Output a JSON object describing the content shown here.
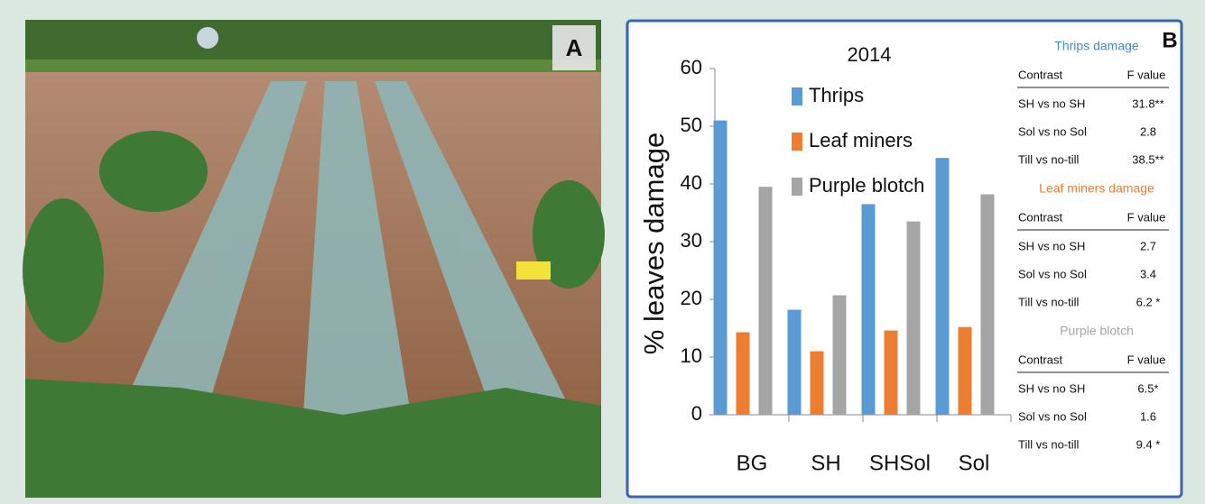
{
  "panels": [
    "A",
    "B"
  ],
  "chart_data": {
    "type": "bar",
    "title": "2014",
    "y_label": "% leaves damage",
    "categories": [
      "BG",
      "SH",
      "SHSol",
      "Sol"
    ],
    "series": [
      {
        "name": "Thrips",
        "color": "#5b9bd5",
        "values": [
          51,
          18.2,
          36.5,
          44.5
        ]
      },
      {
        "name": "Leaf miners",
        "color": "#ed7d31",
        "values": [
          14.3,
          11,
          14.6,
          15.2
        ]
      },
      {
        "name": "Purple blotch",
        "color": "#a5a5a5",
        "values": [
          39.5,
          20.7,
          33.5,
          38.2
        ]
      }
    ],
    "ylim": [
      0,
      60
    ],
    "yticks": [
      0,
      10,
      20,
      30,
      40,
      50,
      60
    ],
    "grid": false,
    "legend": "upper left"
  },
  "tables": [
    {
      "title": "Thrips damage",
      "color": "#4a86c8",
      "header": [
        "Contrast",
        "F value"
      ],
      "rows": [
        [
          "SH vs no SH",
          "31.8**"
        ],
        [
          "Sol vs no Sol",
          "2.8"
        ],
        [
          "Till vs no-till",
          "38.5**"
        ]
      ]
    },
    {
      "title": "Leaf miners damage",
      "color": "#ed7d31",
      "header": [
        "Contrast",
        "F value"
      ],
      "rows": [
        [
          "SH vs no SH",
          "2.7"
        ],
        [
          "Sol vs no Sol",
          "3.4"
        ],
        [
          "Till vs no-till",
          "6.2 *"
        ]
      ]
    },
    {
      "title": "Purple blotch",
      "color": "#a5a5a5",
      "header": [
        "Contrast",
        "F value"
      ],
      "rows": [
        [
          "SH vs no SH",
          "6.5*"
        ],
        [
          "Sol vs no Sol",
          "1.6"
        ],
        [
          "Till vs no-till",
          "9.4 *"
        ]
      ]
    }
  ]
}
